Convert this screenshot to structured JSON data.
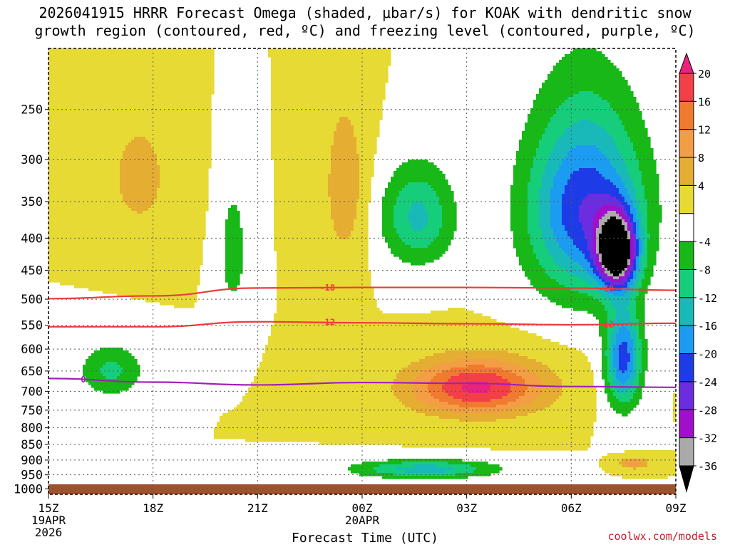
{
  "title_line1": "2026041915 HRRR Forecast Omega (shaded, μbar/s) for KOAK with dendritic snow",
  "title_line2": "growth region (contoured, red, ºC) and freezing level (contoured, purple, ºC)",
  "credit": "coolwx.com/models",
  "chart_data": {
    "type": "heatmap",
    "title": "2026041915 HRRR Forecast Omega (shaded, μbar/s) for KOAK with dendritic snow growth region (contoured, red, ºC) and freezing level (contoured, purple, ºC)",
    "xlabel": "Forecast Time (UTC)",
    "ylabel": "",
    "x_range_hours": [
      0,
      18
    ],
    "x_ticks": [
      {
        "hour": 0,
        "label": "15Z",
        "sub1": "19APR",
        "sub2": "2026"
      },
      {
        "hour": 3,
        "label": "18Z",
        "sub1": "",
        "sub2": ""
      },
      {
        "hour": 6,
        "label": "21Z",
        "sub1": "",
        "sub2": ""
      },
      {
        "hour": 9,
        "label": "00Z",
        "sub1": "20APR",
        "sub2": ""
      },
      {
        "hour": 12,
        "label": "03Z",
        "sub1": "",
        "sub2": ""
      },
      {
        "hour": 15,
        "label": "06Z",
        "sub1": "",
        "sub2": ""
      },
      {
        "hour": 18,
        "label": "09Z",
        "sub1": "",
        "sub2": ""
      }
    ],
    "y_range_hpa": [
      1020,
      200
    ],
    "y_ticks": [
      250,
      300,
      350,
      400,
      450,
      500,
      550,
      600,
      650,
      700,
      750,
      800,
      850,
      900,
      950,
      1000
    ],
    "grid": true,
    "colorbar": {
      "labels": [
        "20",
        "16",
        "12",
        "8",
        "4",
        "-4",
        "-8",
        "-12",
        "-16",
        "-20",
        "-24",
        "-28",
        "-32",
        "-36"
      ],
      "bins": [
        {
          "lo": 20,
          "hi": 24,
          "color": "#e8237e"
        },
        {
          "lo": 16,
          "hi": 20,
          "color": "#f23f48"
        },
        {
          "lo": 12,
          "hi": 16,
          "color": "#f07a30"
        },
        {
          "lo": 8,
          "hi": 12,
          "color": "#f39d45"
        },
        {
          "lo": 4,
          "hi": 8,
          "color": "#e6ad33"
        },
        {
          "lo": 0,
          "hi": 4,
          "color": "#e7da34"
        },
        {
          "lo": -4,
          "hi": 0,
          "color": "#ffffff"
        },
        {
          "lo": -8,
          "hi": -4,
          "color": "#18b818"
        },
        {
          "lo": -12,
          "hi": -8,
          "color": "#16cd7c"
        },
        {
          "lo": -16,
          "hi": -12,
          "color": "#19b9b9"
        },
        {
          "lo": -20,
          "hi": -16,
          "color": "#1c9cf0"
        },
        {
          "lo": -24,
          "hi": -20,
          "color": "#1d3ce8"
        },
        {
          "lo": -28,
          "hi": -24,
          "color": "#6c2ce0"
        },
        {
          "lo": -32,
          "hi": -28,
          "color": "#a10fcb"
        },
        {
          "lo": -36,
          "hi": -32,
          "color": "#aaaaaa"
        },
        {
          "lo": -40,
          "hi": -36,
          "color": "#000000"
        }
      ]
    },
    "omega_features": [
      {
        "name": "ascent-core-upper",
        "hour": 16.3,
        "hpa": 420,
        "peak": -40,
        "w_h": 0.55,
        "w_p": 55
      },
      {
        "name": "ascent-upper-ridge",
        "hour": 15.4,
        "hpa": 360,
        "peak": -24,
        "w_h": 1.6,
        "w_p": 120
      },
      {
        "name": "ascent-column",
        "hour": 16.5,
        "hpa": 620,
        "peak": -22,
        "w_h": 0.5,
        "w_p": 110
      },
      {
        "name": "ascent-mid",
        "hour": 10.6,
        "hpa": 370,
        "peak": -13,
        "w_h": 1.0,
        "w_p": 65
      },
      {
        "name": "ascent-low",
        "hour": 10.8,
        "hpa": 930,
        "peak": -14,
        "w_h": 2.0,
        "w_p": 30
      },
      {
        "name": "ascent-left",
        "hour": 1.8,
        "hpa": 650,
        "peak": -9,
        "w_h": 0.9,
        "w_p": 60
      },
      {
        "name": "ascent-strip",
        "hour": 5.3,
        "hpa": 420,
        "peak": -7,
        "w_h": 0.35,
        "w_p": 90
      },
      {
        "name": "descent-core",
        "hour": 12.3,
        "hpa": 690,
        "peak": 21,
        "w_h": 1.9,
        "w_p": 70
      },
      {
        "name": "descent-upper",
        "hour": 8.5,
        "hpa": 330,
        "peak": 7,
        "w_h": 0.6,
        "w_p": 100
      },
      {
        "name": "descent-left",
        "hour": 2.6,
        "hpa": 320,
        "peak": 6,
        "w_h": 0.9,
        "w_p": 70
      },
      {
        "name": "descent-small",
        "hour": 16.8,
        "hpa": 910,
        "peak": 12,
        "w_h": 0.4,
        "w_p": 18
      }
    ],
    "contours": [
      {
        "name": "dgz-minus-18",
        "label": "-18",
        "color": "#ee3b3b",
        "points": [
          [
            0,
            499
          ],
          [
            3,
            494
          ],
          [
            6,
            480
          ],
          [
            9,
            479
          ],
          [
            12,
            479
          ],
          [
            15,
            480
          ],
          [
            18,
            484
          ]
        ]
      },
      {
        "name": "dgz-minus-12",
        "label": "-12",
        "color": "#ee3b3b",
        "points": [
          [
            0,
            553
          ],
          [
            3,
            553
          ],
          [
            6,
            543
          ],
          [
            9,
            545
          ],
          [
            12,
            547
          ],
          [
            15,
            549
          ],
          [
            18,
            546
          ]
        ]
      },
      {
        "name": "freezing-level-0",
        "label": "0",
        "color": "#a020b8",
        "points": [
          [
            0,
            668
          ],
          [
            3,
            677
          ],
          [
            6,
            684
          ],
          [
            9,
            678
          ],
          [
            12,
            680
          ],
          [
            15,
            688
          ],
          [
            18,
            690
          ]
        ]
      }
    ]
  }
}
